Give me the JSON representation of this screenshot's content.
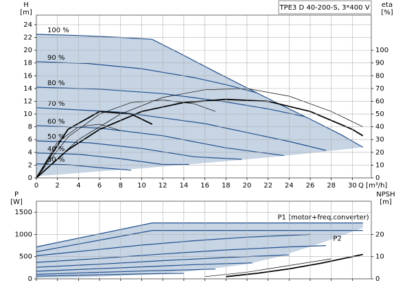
{
  "chart_data": [
    {
      "type": "line",
      "title": "TPE3 D 40-200-S, 3*400 V",
      "y_label": "H",
      "y_unit": "[m]",
      "y2_label": "eta",
      "y2_unit": "[%]",
      "x_label": "Q [m³/h]",
      "xlim": [
        0,
        31.8
      ],
      "xticks": [
        0,
        2,
        4,
        6,
        8,
        10,
        12,
        14,
        16,
        18,
        20,
        22,
        24,
        26,
        28,
        30
      ],
      "xtick_labels": true,
      "ylim": [
        0,
        25.5
      ],
      "yticks": [
        0,
        2,
        4,
        6,
        8,
        10,
        12,
        14,
        16,
        18,
        20,
        22,
        24
      ],
      "y2lim": [
        0,
        127.5
      ],
      "y2ticks": [
        0,
        10,
        20,
        30,
        40,
        50,
        60,
        70,
        80,
        90,
        100
      ],
      "grid": true,
      "series_label_position": "start",
      "series": [
        {
          "fill": "#c6d4e4",
          "x": [
            0,
            4,
            8,
            11,
            14,
            17,
            20,
            23,
            26,
            29,
            31,
            25,
            20,
            15,
            10,
            5,
            2,
            0
          ],
          "values": [
            22.5,
            22.3,
            22,
            21.7,
            19.2,
            16.6,
            14.1,
            11.6,
            9.2,
            6.7,
            4.8,
            3.7,
            2.9,
            2.2,
            1.5,
            0.9,
            0.5,
            0.3
          ]
        },
        {
          "name": "100 %",
          "color": "#1f4e8c",
          "x": [
            0,
            4,
            8,
            11,
            14,
            17,
            20,
            23,
            26,
            29,
            31
          ],
          "values": [
            22.5,
            22.3,
            22,
            21.7,
            19.2,
            16.6,
            14.1,
            11.6,
            9.2,
            6.7,
            4.8
          ]
        },
        {
          "name": "90 %",
          "color": "#1f4e8c",
          "x": [
            0,
            5,
            10,
            15,
            18,
            21
          ],
          "values": [
            18.2,
            17.9,
            17.1,
            15.7,
            14.6,
            13.3
          ]
        },
        {
          "name": "80 %",
          "color": "#1f4e8c",
          "x": [
            0,
            6,
            12,
            18,
            22,
            25.5
          ],
          "values": [
            14.2,
            13.9,
            13.2,
            11.9,
            10.8,
            9.6
          ]
        },
        {
          "name": "70 %",
          "color": "#1f4e8c",
          "x": [
            0,
            8,
            16,
            24,
            27.5
          ],
          "values": [
            11,
            10.3,
            8.5,
            5.7,
            4.3
          ]
        },
        {
          "name": "60 %",
          "color": "#1f4e8c",
          "x": [
            0,
            6,
            12,
            18,
            23.5
          ],
          "values": [
            8.2,
            7.8,
            6.6,
            4.7,
            3.5
          ]
        },
        {
          "name": "50 %",
          "color": "#1f4e8c",
          "x": [
            0,
            5,
            10,
            15,
            19.5
          ],
          "values": [
            5.8,
            5.5,
            4.6,
            3.3,
            2.9
          ]
        },
        {
          "name": "40 %",
          "color": "#1f4e8c",
          "x": [
            0,
            4,
            8,
            12,
            14.5
          ],
          "values": [
            3.9,
            3.7,
            3,
            2.1,
            2.1
          ]
        },
        {
          "name": "30 %",
          "color": "#1f4e8c",
          "x": [
            0,
            3,
            6,
            9
          ],
          "values": [
            2.2,
            2.05,
            1.6,
            1.2
          ]
        },
        {
          "axis": "y2",
          "color": "#000000",
          "x": [
            0,
            4,
            8,
            12,
            16,
            20,
            24,
            28,
            31
          ],
          "values": [
            0,
            30,
            50,
            63,
            69,
            70,
            64,
            52,
            40
          ]
        },
        {
          "axis": "y2",
          "color": "#000000",
          "bold": true,
          "x": [
            0,
            3,
            6,
            10,
            14,
            18,
            22,
            26,
            30,
            31
          ],
          "values": [
            0,
            22,
            38,
            52,
            59,
            61.5,
            60,
            52,
            38,
            33
          ]
        },
        {
          "axis": "y2",
          "color": "#000000",
          "x": [
            0,
            3,
            6,
            9,
            12,
            15,
            17
          ],
          "values": [
            0,
            32,
            50,
            59,
            61,
            58,
            52
          ]
        },
        {
          "axis": "y2",
          "color": "#000000",
          "bold": true,
          "x": [
            0,
            3,
            6,
            9,
            11
          ],
          "values": [
            0,
            38,
            52,
            50,
            42
          ]
        },
        {
          "axis": "y2",
          "color": "#000000",
          "x": [
            0,
            2,
            4,
            6,
            8
          ],
          "values": [
            0,
            28,
            40,
            42,
            37
          ]
        }
      ]
    },
    {
      "type": "line",
      "y_label": "P",
      "y_unit": "[W]",
      "y2_label": "NPSH",
      "y2_unit": "[m]",
      "xlim": [
        0,
        31.8
      ],
      "xticks": [
        0,
        2,
        4,
        6,
        8,
        10,
        12,
        14,
        16,
        18,
        20,
        22,
        24,
        26,
        28,
        30
      ],
      "xtick_labels": false,
      "ylim": [
        0,
        1750
      ],
      "yticks": [
        0,
        500,
        1000,
        1500
      ],
      "y2lim": [
        0,
        35
      ],
      "y2ticks": [
        0,
        10,
        20
      ],
      "grid": true,
      "series_label_position": "end",
      "series": [
        {
          "fill": "#c6d4e4",
          "x": [
            0,
            11,
            31,
            31,
            27,
            23,
            20,
            15,
            10,
            5,
            0
          ],
          "values": [
            720,
            1260,
            1260,
            1150,
            800,
            500,
            330,
            180,
            90,
            40,
            20
          ]
        },
        {
          "name": "P1 (motor+freq.converter)",
          "color": "#1f4e8c",
          "x": [
            0,
            11,
            31
          ],
          "values": [
            720,
            1260,
            1260
          ]
        },
        {
          "name": "P2",
          "color": "#1f4e8c",
          "x": [
            0,
            11,
            31
          ],
          "values": [
            610,
            1090,
            1090
          ]
        },
        {
          "color": "#1f4e8c",
          "x": [
            0,
            5,
            10,
            15,
            20,
            26
          ],
          "values": [
            520,
            640,
            760,
            860,
            940,
            1000
          ]
        },
        {
          "color": "#1f4e8c",
          "x": [
            0,
            6,
            12,
            18,
            24,
            27.5
          ],
          "values": [
            370,
            460,
            560,
            650,
            720,
            750
          ]
        },
        {
          "color": "#1f4e8c",
          "x": [
            0,
            6,
            12,
            18,
            24
          ],
          "values": [
            260,
            330,
            410,
            480,
            540
          ]
        },
        {
          "color": "#1f4e8c",
          "x": [
            0,
            5,
            10,
            15,
            20.5
          ],
          "values": [
            170,
            220,
            270,
            320,
            360
          ]
        },
        {
          "color": "#1f4e8c",
          "x": [
            0,
            5,
            10,
            17
          ],
          "values": [
            100,
            140,
            175,
            220
          ]
        },
        {
          "color": "#1f4e8c",
          "x": [
            0,
            5,
            10,
            14
          ],
          "values": [
            60,
            85,
            110,
            125
          ]
        },
        {
          "axis": "y2",
          "color": "#000000",
          "bold": true,
          "x": [
            18,
            21,
            24,
            27,
            30,
            31
          ],
          "values": [
            1,
            2.5,
            4.5,
            7,
            10,
            11
          ]
        },
        {
          "axis": "y2",
          "color": "#000000",
          "x": [
            16,
            20,
            24,
            28
          ],
          "values": [
            1,
            3,
            6,
            9
          ]
        }
      ]
    }
  ]
}
